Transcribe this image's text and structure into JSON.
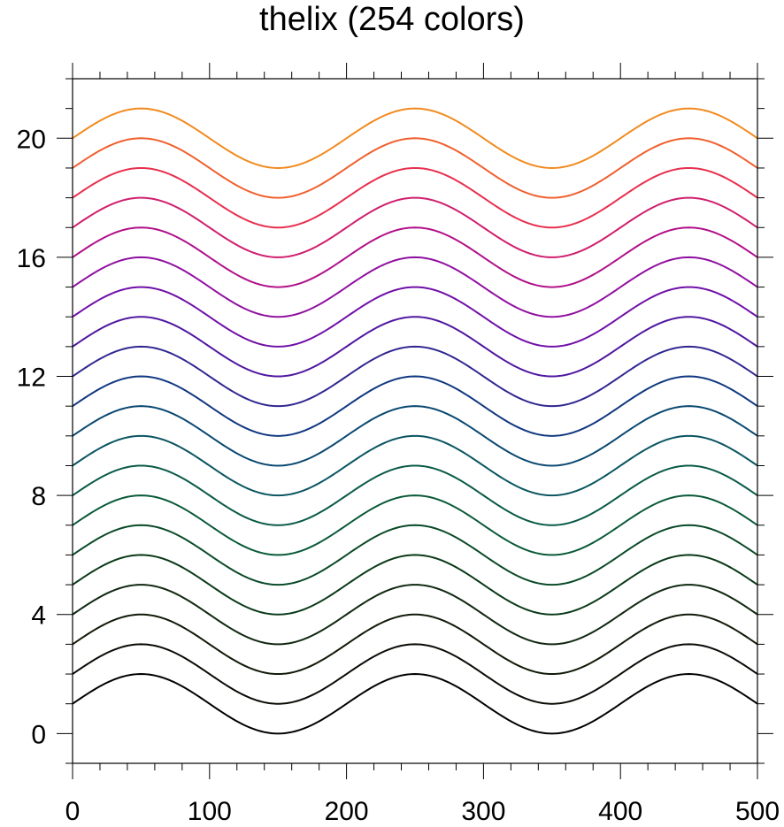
{
  "chart_data": {
    "type": "line",
    "title": "thelix (254 colors)",
    "xlabel": "",
    "ylabel": "",
    "xlim": [
      0,
      500
    ],
    "ylim": [
      -1,
      22
    ],
    "grid": false,
    "x_ticks": [
      0,
      100,
      200,
      300,
      400,
      500
    ],
    "y_ticks": [
      0,
      4,
      8,
      12,
      16,
      20
    ],
    "x_minor_step": 20,
    "y_minor_step": 1,
    "function": "offset + sin(2*pi*x/200)",
    "x_step": 2,
    "series": [
      {
        "offset": 1,
        "color": "#000000"
      },
      {
        "offset": 2,
        "color": "#080c04"
      },
      {
        "offset": 3,
        "color": "#101a08"
      },
      {
        "offset": 4,
        "color": "#102810"
      },
      {
        "offset": 5,
        "color": "#0a3a18"
      },
      {
        "offset": 6,
        "color": "#0a4a28"
      },
      {
        "offset": 7,
        "color": "#0a5a38"
      },
      {
        "offset": 8,
        "color": "#0a5a48"
      },
      {
        "offset": 9,
        "color": "#0a5560"
      },
      {
        "offset": 10,
        "color": "#0a4870"
      },
      {
        "offset": 11,
        "color": "#103880"
      },
      {
        "offset": 12,
        "color": "#302890"
      },
      {
        "offset": 13,
        "color": "#5018a0"
      },
      {
        "offset": 14,
        "color": "#7010a8"
      },
      {
        "offset": 15,
        "color": "#9010a0"
      },
      {
        "offset": 16,
        "color": "#b0108a"
      },
      {
        "offset": 17,
        "color": "#d01f6e"
      },
      {
        "offset": 18,
        "color": "#e8304f"
      },
      {
        "offset": 19,
        "color": "#f0602e"
      },
      {
        "offset": 20,
        "color": "#f28a1e"
      }
    ]
  }
}
